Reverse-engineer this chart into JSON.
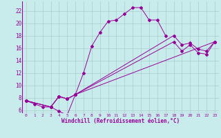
{
  "xlabel": "Windchill (Refroidissement éolien,°C)",
  "bg_color": "#c8ecec",
  "line_color": "#990099",
  "grid_color": "#aacccc",
  "xlim": [
    -0.5,
    23.5
  ],
  "ylim": [
    5.5,
    23.5
  ],
  "xticks": [
    0,
    1,
    2,
    3,
    4,
    5,
    6,
    7,
    8,
    9,
    10,
    11,
    12,
    13,
    14,
    15,
    16,
    17,
    18,
    19,
    20,
    21,
    22,
    23
  ],
  "yticks": [
    6,
    8,
    10,
    12,
    14,
    16,
    18,
    20,
    22
  ],
  "line_with_markers": [
    {
      "x": [
        0,
        1,
        2,
        3,
        4,
        5,
        6,
        7,
        8,
        9,
        10,
        11,
        12,
        13,
        14,
        15,
        16,
        17
      ],
      "y": [
        7.5,
        7.0,
        6.5,
        6.5,
        5.8,
        5.2,
        8.5,
        12.0,
        16.3,
        18.5,
        20.3,
        20.5,
        21.5,
        22.5,
        22.5,
        20.5,
        20.5,
        18.0
      ]
    },
    {
      "x": [
        0,
        3,
        4,
        5,
        6,
        23
      ],
      "y": [
        7.5,
        6.5,
        8.2,
        7.8,
        8.5,
        17.0
      ]
    },
    {
      "x": [
        0,
        3,
        4,
        5,
        6,
        18,
        19,
        20,
        21,
        22,
        23
      ],
      "y": [
        7.5,
        6.5,
        8.2,
        7.8,
        8.5,
        18.0,
        16.5,
        16.8,
        15.8,
        15.5,
        17.0
      ]
    },
    {
      "x": [
        0,
        3,
        4,
        5,
        6,
        18,
        19,
        20,
        21,
        22,
        23
      ],
      "y": [
        7.5,
        6.5,
        8.2,
        7.8,
        8.5,
        17.0,
        15.5,
        16.5,
        15.2,
        15.0,
        17.0
      ]
    }
  ]
}
